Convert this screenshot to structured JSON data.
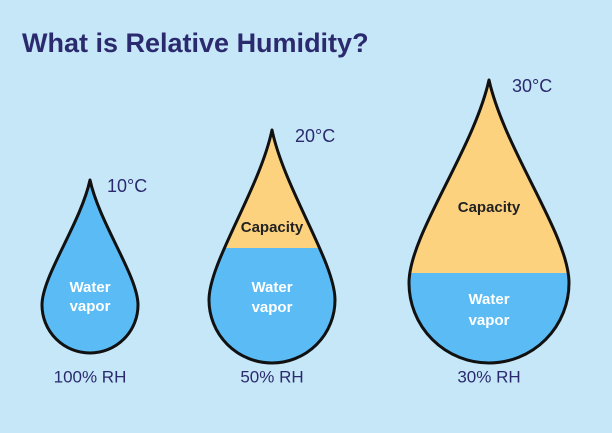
{
  "title": "What is Relative Humidity?",
  "drops": [
    {
      "temperature": "10°C",
      "water_vapor": [
        "Water",
        "vapor"
      ],
      "rh": "100% RH"
    },
    {
      "temperature": "20°C",
      "capacity": "Capacity",
      "water_vapor": [
        "Water",
        "vapor"
      ],
      "rh": "50% RH"
    },
    {
      "temperature": "30°C",
      "capacity": "Capacity",
      "water_vapor": [
        "Water",
        "vapor"
      ],
      "rh": "30% RH"
    }
  ]
}
